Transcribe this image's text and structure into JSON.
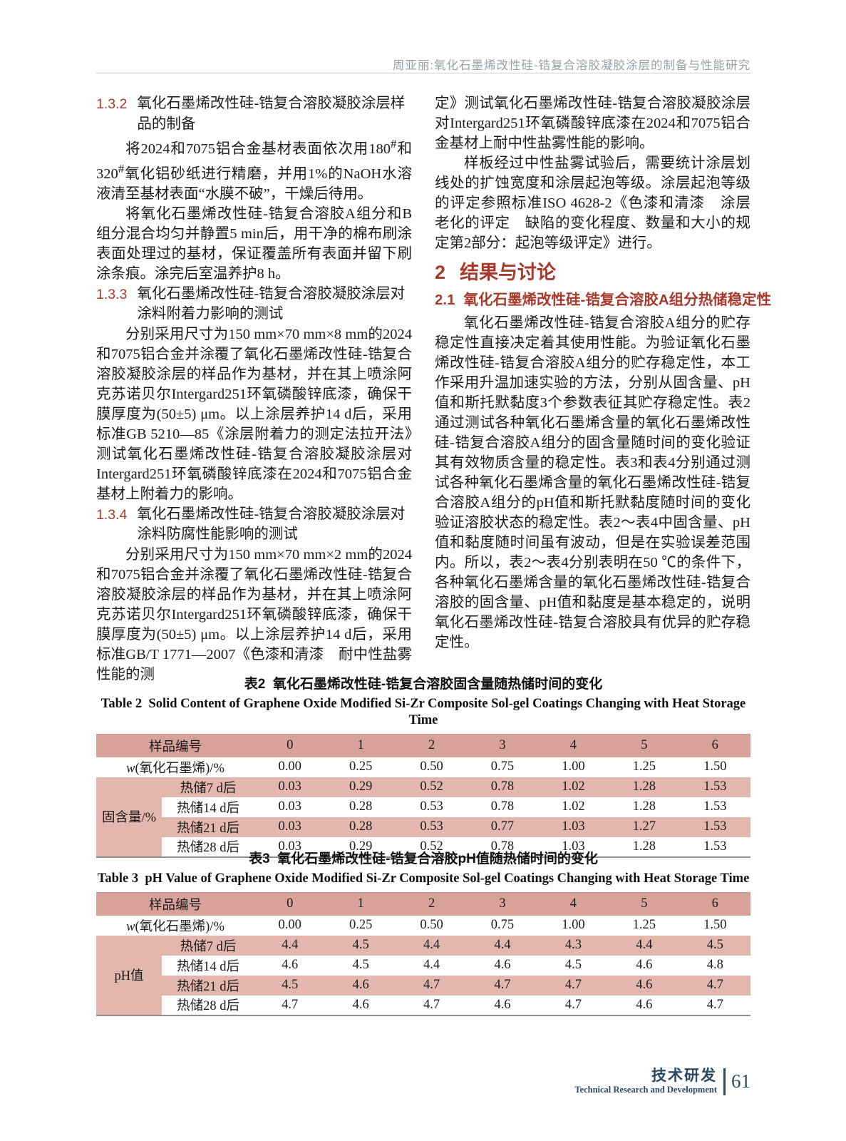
{
  "colors": {
    "accent_red": "#a83a2d",
    "table_header_bg": "#d8a19a",
    "table_row_pink_bg": "#e3b6ae",
    "footer_navy": "#2c4963",
    "running_head_gray": "#96a0a5"
  },
  "header": {
    "running_title": "周亚丽:氧化石墨烯改性硅-锆复合溶胶凝胶涂层的制备与性能研究"
  },
  "left": {
    "h132_num": "1.3.2",
    "h132_title": "氧化石墨烯改性硅-锆复合溶胶凝胶涂层样品的制备",
    "p1_html": "将2024和7075铝合金基材表面依次用180<sup>#</sup>和320<sup>#</sup>氧化铝砂纸进行精磨，并用1%的NaOH水溶液清至基材表面“水膜不破”，干燥后待用。",
    "p2": "将氧化石墨烯改性硅-锆复合溶胶A组分和B组分混合均匀并静置5 min后，用干净的棉布刷涂表面处理过的基材，保证覆盖所有表面并留下刷涂条痕。涂完后室温养护8 h。",
    "h133_num": "1.3.3",
    "h133_title": "氧化石墨烯改性硅-锆复合溶胶凝胶涂层对涂料附着力影响的测试",
    "p3": "分别采用尺寸为150 mm×70 mm×8 mm的2024和7075铝合金并涂覆了氧化石墨烯改性硅-锆复合溶胶凝胶涂层的样品作为基材，并在其上喷涂阿克苏诺贝尔Intergard251环氧磷酸锌底漆，确保干膜厚度为(50±5) μm。以上涂层养护14 d后，采用标准GB 5210—85《涂层附着力的测定法拉开法》测试氧化石墨烯改性硅-锆复合溶胶凝胶涂层对Intergard251环氧磷酸锌底漆在2024和7075铝合金基材上附着力的影响。",
    "h134_num": "1.3.4",
    "h134_title": "氧化石墨烯改性硅-锆复合溶胶凝胶涂层对涂料防腐性能影响的测试",
    "p4": "分别采用尺寸为150 mm×70 mm×2 mm的2024和7075铝合金并涂覆了氧化石墨烯改性硅-锆复合溶胶凝胶涂层的样品作为基材，并在其上喷涂阿克苏诺贝尔Intergard251环氧磷酸锌底漆，确保干膜厚度为(50±5) μm。以上涂层养护14 d后，采用标准GB/T 1771—2007《色漆和清漆　耐中性盐雾性能的测"
  },
  "right": {
    "p1": "定》测试氧化石墨烯改性硅-锆复合溶胶凝胶涂层对Intergard251环氧磷酸锌底漆在2024和7075铝合金基材上耐中性盐雾性能的影响。",
    "p2": "样板经过中性盐雾试验后，需要统计涂层划线处的扩蚀宽度和涂层起泡等级。涂层起泡等级的评定参照标准ISO 4628-2《色漆和清漆　涂层老化的评定　缺陷的变化程度、数量和大小的规定第2部分：起泡等级评定》进行。",
    "h2_num": "2",
    "h2_title": "结果与讨论",
    "h21_num": "2.1",
    "h21_title": "氧化石墨烯改性硅-锆复合溶胶A组分热储稳定性",
    "p3": "氧化石墨烯改性硅-锆复合溶胶A组分的贮存稳定性直接决定着其使用性能。为验证氧化石墨烯改性硅-锆复合溶胶A组分的贮存稳定性，本工作采用升温加速实验的方法，分别从固含量、pH值和斯托默黏度3个参数表征其贮存稳定性。表2通过测试各种氧化石墨烯含量的氧化石墨烯改性硅-锆复合溶胶A组分的固含量随时间的变化验证其有效物质含量的稳定性。表3和表4分别通过测试各种氧化石墨烯含量的氧化石墨烯改性硅-锆复合溶胶A组分的pH值和斯托默黏度随时间的变化验证溶胶状态的稳定性。表2～表4中固含量、pH值和黏度随时间虽有波动，但是在实验误差范围内。所以，表2～表4分别表明在50 ℃的条件下，各种氧化石墨烯含量的氧化石墨烯改性硅-锆复合溶胶的固含量、pH值和黏度是基本稳定的，说明氧化石墨烯改性硅-锆复合溶胶具有优异的贮存稳定性。"
  },
  "tables": [
    {
      "caption_zh": "表2  氧化石墨烯改性硅-锆复合溶胶固含量随热储时间的变化",
      "caption_en": "Table 2  Solid Content of Graphene Oxide Modified Si-Zr Composite Sol-gel Coatings Changing with Heat Storage Time",
      "header_label": "样品编号",
      "columns": [
        "0",
        "1",
        "2",
        "3",
        "4",
        "5",
        "6"
      ],
      "row2_label_prefix": "w",
      "row2_label_rest": "(氧化石墨烯)/%",
      "row2_values": [
        "0.00",
        "0.25",
        "0.50",
        "0.75",
        "1.00",
        "1.25",
        "1.50"
      ],
      "group_label": "固含量/%",
      "group_rows": [
        {
          "label": "热储7 d后",
          "values": [
            "0.03",
            "0.29",
            "0.52",
            "0.78",
            "1.02",
            "1.28",
            "1.53"
          ]
        },
        {
          "label": "热储14 d后",
          "values": [
            "0.03",
            "0.28",
            "0.53",
            "0.78",
            "1.02",
            "1.28",
            "1.53"
          ]
        },
        {
          "label": "热储21 d后",
          "values": [
            "0.03",
            "0.28",
            "0.53",
            "0.77",
            "1.03",
            "1.27",
            "1.53"
          ]
        },
        {
          "label": "热储28 d后",
          "values": [
            "0.03",
            "0.29",
            "0.52",
            "0.78",
            "1.03",
            "1.28",
            "1.53"
          ]
        }
      ]
    },
    {
      "caption_zh": "表3  氧化石墨烯改性硅-锆复合溶胶pH值随热储时间的变化",
      "caption_en": "Table 3  pH Value of Graphene Oxide Modified Si-Zr Composite Sol-gel Coatings Changing with Heat Storage Time",
      "header_label": "样品编号",
      "columns": [
        "0",
        "1",
        "2",
        "3",
        "4",
        "5",
        "6"
      ],
      "row2_label_prefix": "w",
      "row2_label_rest": "(氧化石墨烯)/%",
      "row2_values": [
        "0.00",
        "0.25",
        "0.50",
        "0.75",
        "1.00",
        "1.25",
        "1.50"
      ],
      "group_label": "pH值",
      "group_rows": [
        {
          "label": "热储7 d后",
          "values": [
            "4.4",
            "4.5",
            "4.4",
            "4.4",
            "4.3",
            "4.4",
            "4.5"
          ]
        },
        {
          "label": "热储14 d后",
          "values": [
            "4.6",
            "4.5",
            "4.4",
            "4.6",
            "4.5",
            "4.6",
            "4.8"
          ]
        },
        {
          "label": "热储21 d后",
          "values": [
            "4.5",
            "4.6",
            "4.7",
            "4.7",
            "4.7",
            "4.6",
            "4.7"
          ]
        },
        {
          "label": "热储28 d后",
          "values": [
            "4.7",
            "4.6",
            "4.7",
            "4.6",
            "4.7",
            "4.6",
            "4.7"
          ]
        }
      ]
    }
  ],
  "footer": {
    "section_zh": "技术研发",
    "section_en": "Technical Research and Development",
    "page_number": "61"
  }
}
